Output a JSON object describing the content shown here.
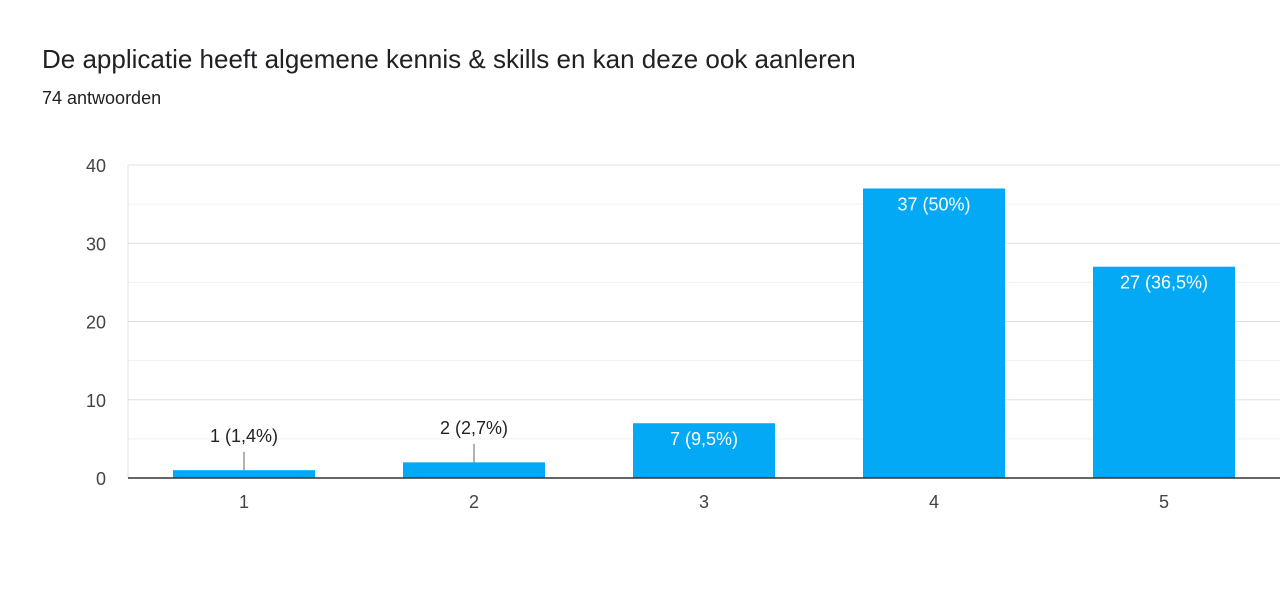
{
  "question": {
    "title": "De applicatie heeft algemene kennis & skills en kan deze ook aanleren",
    "responses": "74 antwoorden"
  },
  "chart_data": {
    "type": "bar",
    "categories": [
      "1",
      "2",
      "3",
      "4",
      "5"
    ],
    "values": [
      1,
      2,
      7,
      37,
      27
    ],
    "data_labels": [
      "1 (1,4%)",
      "2 (2,7%)",
      "7 (9,5%)",
      "37 (50%)",
      "27 (36,5%)"
    ],
    "ylim": [
      0,
      40
    ],
    "yticks": [
      0,
      10,
      20,
      30,
      40
    ],
    "grid": true,
    "legend": "none",
    "bar_color": "#03a9f4"
  }
}
